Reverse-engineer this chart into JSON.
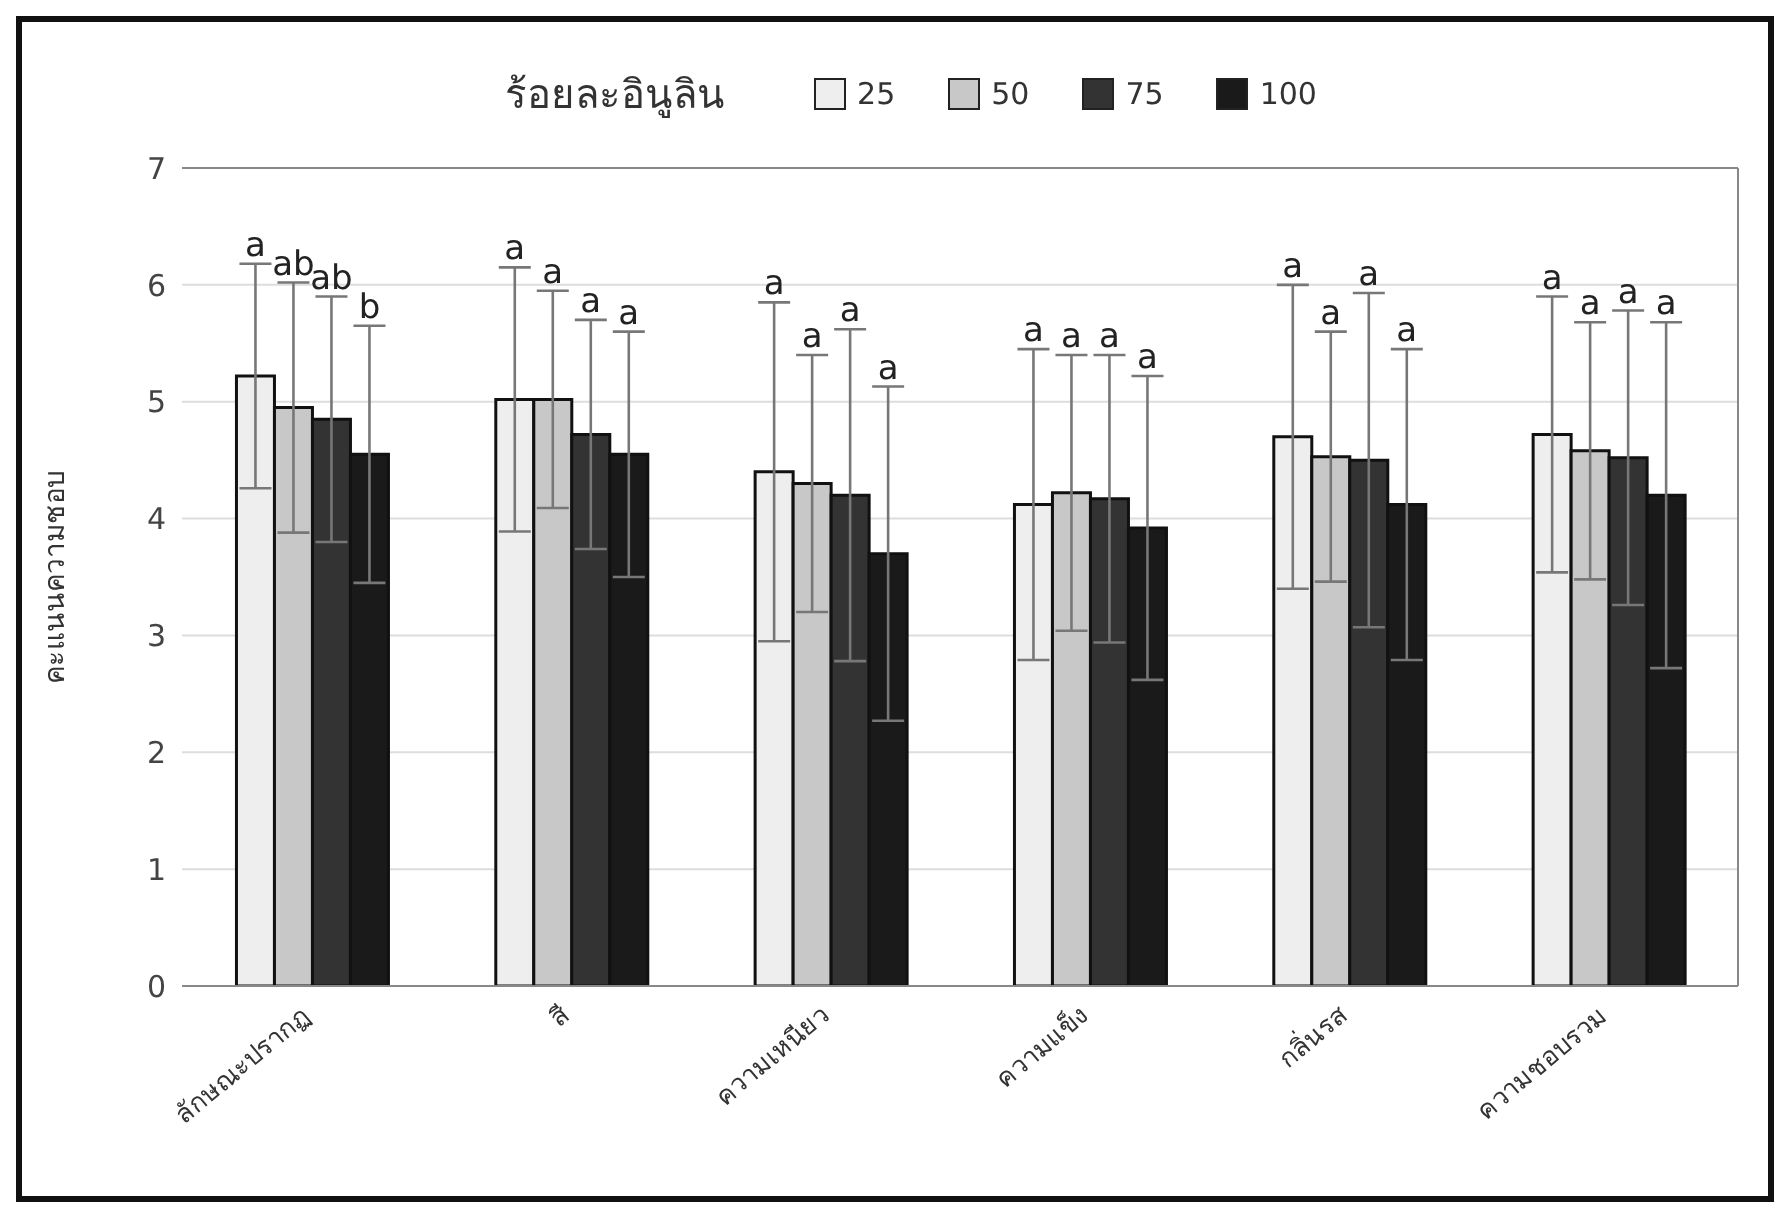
{
  "chart_data": {
    "type": "bar",
    "legend_title": "ร้อยละอินูลิน",
    "ylabel": "คะแนนความชอบ",
    "categories": [
      "ลักษณะปรากฏ",
      "สี",
      "ความเหนียว",
      "ความแข็ง",
      "กลิ่นรส",
      "ความชอบรวม"
    ],
    "series": [
      {
        "name": "25",
        "color": "#eeeeee",
        "values": [
          5.22,
          5.02,
          4.4,
          4.12,
          4.7,
          4.72
        ],
        "errors": [
          0.96,
          1.13,
          1.45,
          1.33,
          1.3,
          1.18
        ]
      },
      {
        "name": "50",
        "color": "#c8c8c8",
        "values": [
          4.95,
          5.02,
          4.3,
          4.22,
          4.53,
          4.58
        ],
        "errors": [
          1.07,
          0.93,
          1.1,
          1.18,
          1.07,
          1.1
        ]
      },
      {
        "name": "75",
        "color": "#333333",
        "values": [
          4.85,
          4.72,
          4.2,
          4.17,
          4.5,
          4.52
        ],
        "errors": [
          1.05,
          0.98,
          1.42,
          1.23,
          1.43,
          1.26
        ]
      },
      {
        "name": "100",
        "color": "#1a1a1a",
        "values": [
          4.55,
          4.55,
          3.7,
          3.92,
          4.12,
          4.2
        ],
        "errors": [
          1.1,
          1.05,
          1.43,
          1.3,
          1.33,
          1.48
        ]
      }
    ],
    "annotations": [
      "a",
      "ab",
      "ab",
      "b",
      "a",
      "a",
      "a",
      "a",
      "a",
      "a",
      "a",
      "a",
      "a",
      "a",
      "a",
      "a",
      "a",
      "a",
      "a",
      "a",
      "a",
      "a",
      "a",
      "a"
    ],
    "ylim": [
      0,
      7
    ],
    "yticks": [
      0,
      1,
      2,
      3,
      4,
      5,
      6,
      7
    ],
    "grid": "y",
    "legend": "top"
  }
}
